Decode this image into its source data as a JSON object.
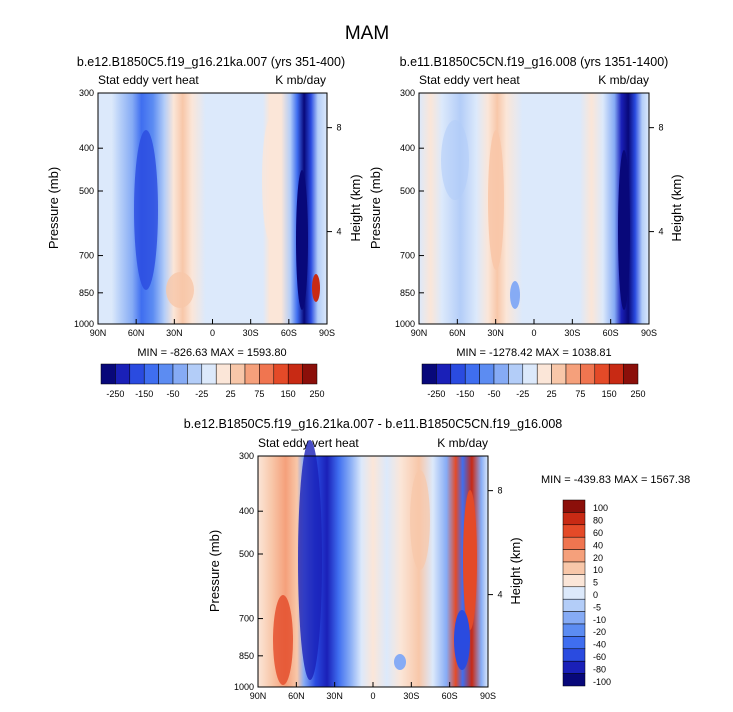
{
  "figure": {
    "title": "MAM"
  },
  "colors": {
    "palette11": [
      "#08087a",
      "#1a20b8",
      "#2a4be0",
      "#3f6ef0",
      "#5c8cf2",
      "#86abf5",
      "#b3cdf8",
      "#dce9fb",
      "#fbe6d8",
      "#f8c7a9",
      "#f5a07b",
      "#f07550",
      "#e44a28",
      "#c82a14",
      "#8b0f0a"
    ],
    "palette_diff": [
      "#08087a",
      "#1a20b8",
      "#2a4be0",
      "#3f6ef0",
      "#5c8cf2",
      "#86abf5",
      "#b3cdf8",
      "#dce9fb",
      "#fbe6d8",
      "#f8c7a9",
      "#f5a07b",
      "#f07550",
      "#e44a28",
      "#c82a14",
      "#8b0f0a"
    ]
  },
  "chart_data": [
    {
      "type": "heatmap",
      "title": "b.e12.B1850C5.f19_g16.21ka.007 (yrs 351-400)",
      "left_label": "Stat eddy vert heat",
      "right_label": "K mb/day",
      "ylabel": "Pressure (mb)",
      "y2label": "Height (km)",
      "x_ticks": [
        "90N",
        "60N",
        "30N",
        "0",
        "30S",
        "60S",
        "90S"
      ],
      "y_ticks": [
        "300",
        "400",
        "500",
        "700",
        "850",
        "1000"
      ],
      "y2_ticks": [
        "8",
        "4"
      ],
      "min_max": "MIN = -826.63   MAX = 1593.80",
      "colorbar_labels": [
        "-250",
        "-150",
        "-50",
        "-25",
        "25",
        "75",
        "150",
        "250"
      ]
    },
    {
      "type": "heatmap",
      "title": "b.e11.B1850C5CN.f19_g16.008 (yrs 1351-1400)",
      "left_label": "Stat eddy vert heat",
      "right_label": "K mb/day",
      "ylabel": "Pressure (mb)",
      "y2label": "Height (km)",
      "x_ticks": [
        "90N",
        "60N",
        "30N",
        "0",
        "30S",
        "60S",
        "90S"
      ],
      "y_ticks": [
        "300",
        "400",
        "500",
        "700",
        "850",
        "1000"
      ],
      "y2_ticks": [
        "8",
        "4"
      ],
      "min_max": "MIN = -1278.42   MAX = 1038.81",
      "colorbar_labels": [
        "-250",
        "-150",
        "-50",
        "-25",
        "25",
        "75",
        "150",
        "250"
      ]
    },
    {
      "type": "heatmap",
      "title": "b.e12.B1850C5.f19_g16.21ka.007 - b.e11.B1850C5CN.f19_g16.008",
      "left_label": "Stat eddy vert heat",
      "right_label": "K mb/day",
      "ylabel": "Pressure (mb)",
      "y2label": "Height (km)",
      "x_ticks": [
        "90N",
        "60N",
        "30N",
        "0",
        "30S",
        "60S",
        "90S"
      ],
      "y_ticks": [
        "300",
        "400",
        "500",
        "700",
        "850",
        "1000"
      ],
      "y2_ticks": [
        "8",
        "4"
      ],
      "min_max": "MIN = -439.83   MAX = 1567.38",
      "colorbar_labels": [
        "100",
        "80",
        "60",
        "40",
        "20",
        "10",
        "5",
        "0",
        "-5",
        "-10",
        "-20",
        "-40",
        "-60",
        "-80",
        "-100"
      ]
    }
  ]
}
